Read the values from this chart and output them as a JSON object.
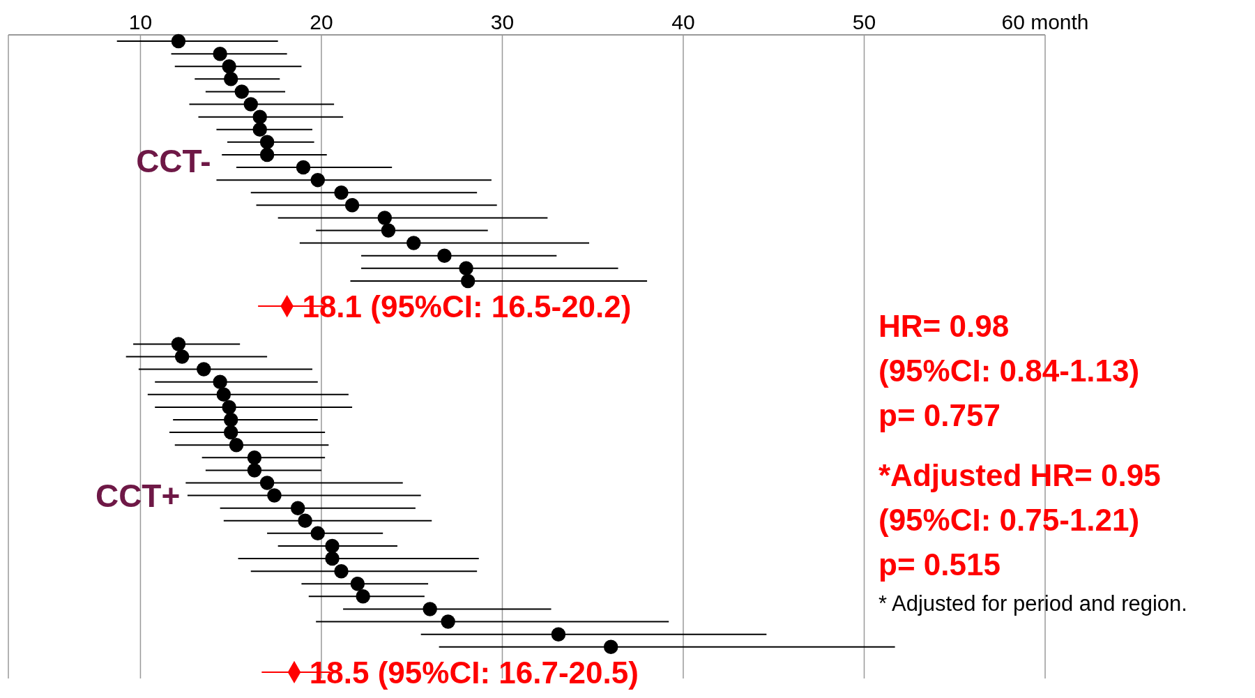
{
  "chart_data": {
    "type": "scatter",
    "orientation": "horizontal",
    "categories": [
      null,
      null,
      null,
      null,
      null,
      null,
      null,
      null,
      null,
      null,
      null,
      null,
      null,
      null,
      null,
      null,
      null,
      null,
      null,
      null,
      null,
      null,
      null,
      null,
      null,
      null,
      null,
      null,
      null,
      null,
      null,
      null,
      null,
      null,
      null,
      null,
      null,
      null,
      null,
      null,
      null,
      null,
      null,
      null,
      null,
      null,
      null,
      null,
      null,
      null,
      null
    ],
    "xlim": [
      2.7,
      60
    ],
    "xticks": [
      10,
      20,
      30,
      40,
      50,
      {
        "value": 60,
        "label": "60 month"
      }
    ],
    "grid": "x",
    "tick_labels": "x",
    "series": [
      {
        "name": "CCT-",
        "color": "#000000",
        "marker": "circle",
        "values": [
          12.1,
          14.4,
          14.9,
          15.0,
          15.6,
          16.1,
          16.6,
          16.6,
          17.0,
          17.0,
          19.0,
          19.8,
          21.1,
          21.7,
          23.5,
          23.7,
          25.1,
          26.8,
          28.0,
          28.1,
          null,
          null,
          null,
          null,
          null,
          null,
          null,
          null,
          null,
          null,
          null,
          null,
          null,
          null,
          null,
          null,
          null,
          null,
          null,
          null,
          null,
          null,
          null,
          null,
          null,
          null,
          null,
          null,
          null,
          null,
          null
        ],
        "errors": [
          [
            8.7,
            17.6
          ],
          [
            11.7,
            18.1
          ],
          [
            11.9,
            18.9
          ],
          [
            13.0,
            17.7
          ],
          [
            13.6,
            18.0
          ],
          [
            12.7,
            20.7
          ],
          [
            13.2,
            21.2
          ],
          [
            14.2,
            19.5
          ],
          [
            14.8,
            19.6
          ],
          [
            14.5,
            20.3
          ],
          [
            15.3,
            23.9
          ],
          [
            14.2,
            29.4
          ],
          [
            16.1,
            28.6
          ],
          [
            16.4,
            29.7
          ],
          [
            17.6,
            32.5
          ],
          [
            19.7,
            29.2
          ],
          [
            18.8,
            34.8
          ],
          [
            22.2,
            33.0
          ],
          [
            22.2,
            36.4
          ],
          [
            21.6,
            38.0
          ],
          null,
          null,
          null,
          null,
          null,
          null,
          null,
          null,
          null,
          null,
          null,
          null,
          null,
          null,
          null,
          null,
          null,
          null,
          null,
          null,
          null,
          null,
          null,
          null,
          null,
          null,
          null,
          null,
          null,
          null,
          null
        ]
      },
      {
        "name": "CCT+",
        "color": "#000000",
        "marker": "circle",
        "values": [
          null,
          null,
          null,
          null,
          null,
          null,
          null,
          null,
          null,
          null,
          null,
          null,
          null,
          null,
          null,
          null,
          null,
          null,
          null,
          null,
          null,
          null,
          null,
          null,
          12.1,
          12.3,
          13.5,
          14.4,
          14.6,
          14.9,
          15.0,
          15.0,
          15.3,
          16.3,
          16.3,
          17.0,
          17.4,
          18.7,
          19.1,
          19.8,
          20.6,
          20.6,
          21.1,
          22.0,
          22.3,
          26.0,
          27.0,
          33.1,
          36.0,
          null,
          null
        ],
        "errors": [
          null,
          null,
          null,
          null,
          null,
          null,
          null,
          null,
          null,
          null,
          null,
          null,
          null,
          null,
          null,
          null,
          null,
          null,
          null,
          null,
          null,
          null,
          null,
          null,
          [
            9.6,
            15.5
          ],
          [
            9.2,
            17.0
          ],
          [
            9.9,
            19.5
          ],
          [
            10.8,
            19.8
          ],
          [
            10.4,
            21.5
          ],
          [
            10.8,
            21.7
          ],
          [
            11.8,
            19.8
          ],
          [
            11.6,
            20.2
          ],
          [
            11.9,
            20.4
          ],
          [
            13.4,
            20.2
          ],
          [
            13.6,
            20.0
          ],
          [
            12.5,
            24.5
          ],
          [
            12.6,
            25.5
          ],
          [
            14.4,
            25.2
          ],
          [
            14.6,
            26.1
          ],
          [
            17.0,
            23.4
          ],
          [
            17.6,
            24.2
          ],
          [
            15.4,
            28.7
          ],
          [
            16.1,
            28.6
          ],
          [
            18.9,
            25.9
          ],
          [
            19.3,
            25.7
          ],
          [
            21.2,
            32.7
          ],
          [
            19.7,
            39.2
          ],
          [
            25.5,
            44.6
          ],
          [
            26.5,
            51.7
          ],
          null,
          null
        ]
      },
      {
        "color": "#ff0000",
        "marker": "diamond",
        "values": [
          null,
          null,
          null,
          null,
          null,
          null,
          null,
          null,
          null,
          null,
          null,
          null,
          null,
          null,
          null,
          null,
          null,
          null,
          null,
          null,
          null,
          18.1,
          null,
          null,
          null,
          null,
          null,
          null,
          null,
          null,
          null,
          null,
          null,
          null,
          null,
          null,
          null,
          null,
          null,
          null,
          null,
          null,
          null,
          null,
          null,
          null,
          null,
          null,
          null,
          null,
          18.5
        ],
        "errors": [
          null,
          null,
          null,
          null,
          null,
          null,
          null,
          null,
          null,
          null,
          null,
          null,
          null,
          null,
          null,
          null,
          null,
          null,
          null,
          null,
          null,
          [
            16.5,
            20.2
          ],
          null,
          null,
          null,
          null,
          null,
          null,
          null,
          null,
          null,
          null,
          null,
          null,
          null,
          null,
          null,
          null,
          null,
          null,
          null,
          null,
          null,
          null,
          null,
          null,
          null,
          null,
          null,
          null,
          [
            16.7,
            20.5
          ]
        ],
        "value_labels": [
          null,
          null,
          null,
          null,
          null,
          null,
          null,
          null,
          null,
          null,
          null,
          null,
          null,
          null,
          null,
          null,
          null,
          null,
          null,
          null,
          null,
          "18.1 (95%CI: 16.5-20.2)",
          null,
          null,
          null,
          null,
          null,
          null,
          null,
          null,
          null,
          null,
          null,
          null,
          null,
          null,
          null,
          null,
          null,
          null,
          null,
          null,
          null,
          null,
          null,
          null,
          null,
          null,
          null,
          null,
          "18.5 (95%CI: 16.7-20.5)"
        ]
      }
    ],
    "annotations": [
      "HR= 0.98",
      "(95%CI: 0.84-1.13)",
      "p= 0.757",
      "*Adjusted HR= 0.95",
      "(95%CI: 0.75-1.21)",
      "p= 0.515",
      "* Adjusted for period and region."
    ]
  }
}
